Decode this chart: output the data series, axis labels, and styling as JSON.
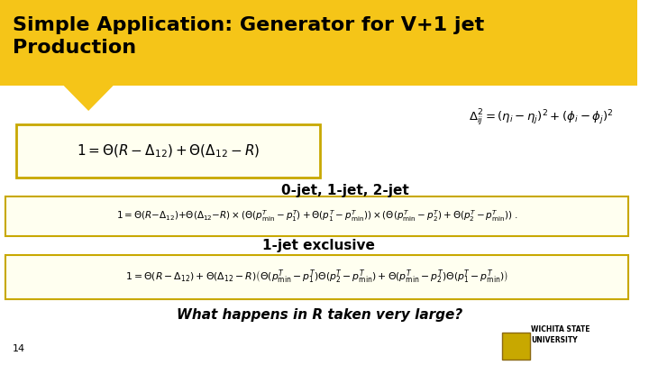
{
  "title": "Simple Application: Generator for V+1 jet\nProduction",
  "title_bg": "#F5C518",
  "slide_bg": "#FFFFFF",
  "page_number": "14",
  "eq_delta": "$\\Delta_{ij}^2 = (\\eta_i - \\eta_j)^2 + (\\phi_i - \\phi_j)^2$",
  "eq_box1": "$1 = \\Theta(R - \\Delta_{12}) + \\Theta(\\Delta_{12} - R)$",
  "label_0jet": "0-jet, 1-jet, 2-jet",
  "eq_box2": "$1 = \\Theta(R{-}\\Delta_{12}){+}\\Theta(\\Delta_{12}{-}R)\\times(\\Theta(p^T_{\\rm min} - p^T_1) + \\Theta(p^T_1 - p^T_{\\rm min}))\\times(\\Theta(p^T_{\\rm min} - p^T_2) + \\Theta(p^T_2 - p^T_{\\rm min}))\\;.$",
  "label_1jet": "1-jet exclusive",
  "eq_box3": "$1 = \\Theta(R - \\Delta_{12}) + \\Theta(\\Delta_{12} - R)\\left(\\Theta(p^T_{\\rm min} - p^T_1)\\Theta(p^T_2 - p^T_{\\rm min}) + \\Theta(p^T_{\\rm min} - p^T_2)\\Theta(p^T_1 - p^T_{\\rm min})\\right)$",
  "what_happens": "What happens in R taken very large?",
  "box_color": "#C8A800",
  "triangle_color": "#F5C518"
}
